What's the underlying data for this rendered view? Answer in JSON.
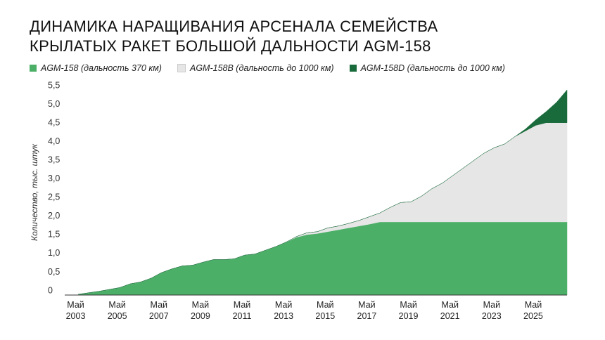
{
  "chart_data": {
    "type": "stacked_area",
    "title": "ДИНАМИКА НАРАЩИВАНИЯ АРСЕНАЛА СЕМЕЙСТВА КРЫЛАТЫХ РАКЕТ БОЛЬШОЙ ДАЛЬНОСТИ AGM-158",
    "y_label": "Количество, тыс. штук",
    "x": [
      2003.5,
      2004,
      2004.5,
      2005,
      2005.5,
      2006,
      2006.5,
      2007,
      2007.5,
      2008,
      2008.5,
      2009,
      2009.5,
      2010,
      2010.5,
      2011,
      2011.5,
      2012,
      2012.5,
      2013,
      2013.5,
      2014,
      2014.5,
      2015,
      2015.5,
      2016,
      2016.5,
      2017,
      2017.5,
      2018,
      2018.5,
      2019,
      2019.5,
      2020,
      2020.5,
      2021,
      2021.5,
      2022,
      2022.5,
      2023,
      2023.5,
      2024,
      2024.5,
      2025,
      2025.5,
      2026,
      2026.5,
      2027
    ],
    "series": [
      {
        "name": "AGM-158 (дальность 370 км)",
        "color": "#4caf67",
        "values": [
          0.02,
          0.06,
          0.1,
          0.15,
          0.2,
          0.3,
          0.35,
          0.45,
          0.6,
          0.7,
          0.78,
          0.8,
          0.88,
          0.95,
          0.95,
          0.97,
          1.07,
          1.1,
          1.2,
          1.3,
          1.42,
          1.55,
          1.62,
          1.65,
          1.7,
          1.75,
          1.8,
          1.85,
          1.9,
          1.96,
          1.96,
          1.96,
          1.96,
          1.96,
          1.96,
          1.96,
          1.96,
          1.96,
          1.96,
          1.96,
          1.96,
          1.96,
          1.96,
          1.96,
          1.96,
          1.96,
          1.96,
          1.96
        ]
      },
      {
        "name": "AGM-158B (дальность до 1000 км)",
        "color": "#e6e6e6",
        "values": [
          0,
          0,
          0,
          0,
          0,
          0,
          0,
          0,
          0,
          0,
          0,
          0,
          0,
          0,
          0,
          0,
          0,
          0,
          0,
          0,
          0,
          0.02,
          0.05,
          0.05,
          0.1,
          0.1,
          0.12,
          0.15,
          0.2,
          0.24,
          0.39,
          0.52,
          0.54,
          0.69,
          0.89,
          1.04,
          1.24,
          1.44,
          1.64,
          1.84,
          1.99,
          2.09,
          2.29,
          2.44,
          2.59,
          2.66,
          2.66,
          2.66
        ]
      },
      {
        "name": "AGM-158D (дальность до 1000 км)",
        "color": "#1a6b3c",
        "values": [
          0,
          0,
          0,
          0,
          0,
          0,
          0,
          0,
          0,
          0,
          0,
          0,
          0,
          0,
          0,
          0,
          0,
          0,
          0,
          0,
          0,
          0,
          0,
          0,
          0,
          0,
          0,
          0,
          0,
          0,
          0,
          0,
          0,
          0,
          0,
          0,
          0,
          0,
          0,
          0,
          0,
          0,
          0,
          0.05,
          0.15,
          0.3,
          0.55,
          0.88
        ]
      }
    ],
    "xlim": [
      2002.85,
      2027
    ],
    "xticks": [
      {
        "value": 2003.375,
        "label": "Май 2003"
      },
      {
        "value": 2005.375,
        "label": "Май 2005"
      },
      {
        "value": 2007.375,
        "label": "Май 2007"
      },
      {
        "value": 2009.375,
        "label": "Май 2009"
      },
      {
        "value": 2011.375,
        "label": "Май 2011"
      },
      {
        "value": 2013.375,
        "label": "Май 2013"
      },
      {
        "value": 2015.375,
        "label": "Май 2015"
      },
      {
        "value": 2017.375,
        "label": "Май 2017"
      },
      {
        "value": 2019.375,
        "label": "Май 2019"
      },
      {
        "value": 2021.375,
        "label": "Май 2021"
      },
      {
        "value": 2023.375,
        "label": "Май 2023"
      },
      {
        "value": 2025.375,
        "label": "Май 2025"
      }
    ],
    "ylim": [
      0,
      5.5
    ],
    "yticks": [
      0,
      {
        "value": 0.5,
        "label": "0,5"
      },
      {
        "value": 1.0,
        "label": "1,0"
      },
      {
        "value": 1.5,
        "label": "1,5"
      },
      {
        "value": 2.0,
        "label": "2,0"
      },
      {
        "value": 2.5,
        "label": "2,5"
      },
      {
        "value": 3.0,
        "label": "3,0"
      },
      {
        "value": 3.5,
        "label": "3,5"
      },
      {
        "value": 4.0,
        "label": "4,0"
      },
      {
        "value": 4.5,
        "label": "4,5"
      },
      {
        "value": 5.0,
        "label": "5,0"
      },
      {
        "value": 5.5,
        "label": "5,5"
      }
    ],
    "grid": false,
    "legend": "top-left"
  }
}
